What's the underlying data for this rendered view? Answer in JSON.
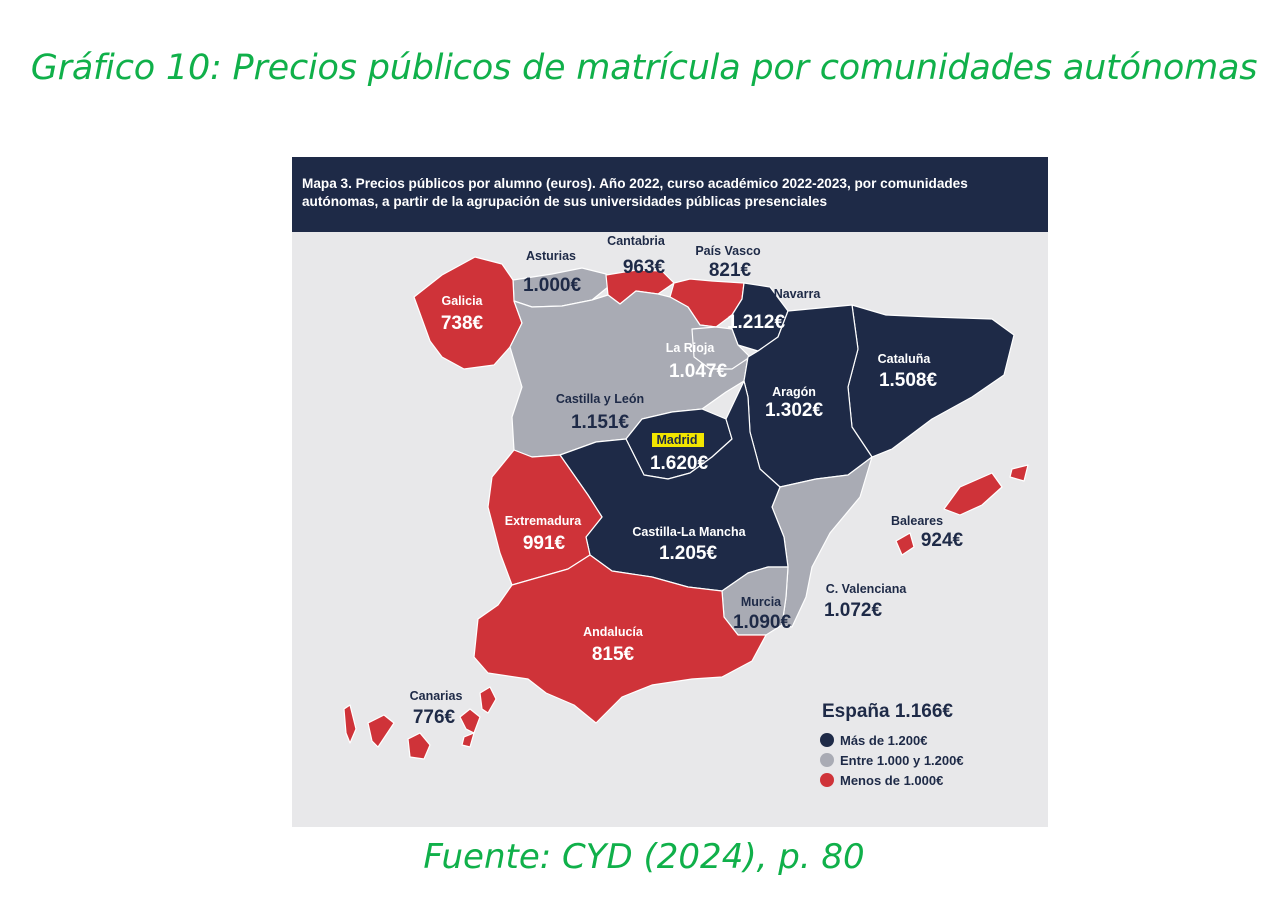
{
  "title": "Gráfico 10: Precios públicos de matrícula por comunidades autónomas",
  "map": {
    "header": "Mapa 3. Precios públicos por alumno (euros). Año 2022, curso académico 2022-2023, por comunidades autónomas, a partir de la agrupación de sus universidades públicas presenciales",
    "colors": {
      "high": "#1e2a47",
      "mid": "#a9abb4",
      "low": "#cf3339",
      "background": "#e8e8ea",
      "madrid_highlight": "#f2e600"
    },
    "regions": [
      {
        "name": "Galicia",
        "value": "738€",
        "category": "low"
      },
      {
        "name": "Asturias",
        "value": "1.000€",
        "category": "mid"
      },
      {
        "name": "Cantabria",
        "value": "963€",
        "category": "low"
      },
      {
        "name": "País Vasco",
        "value": "821€",
        "category": "low"
      },
      {
        "name": "Navarra",
        "value": "1.212€",
        "category": "high"
      },
      {
        "name": "La Rioja",
        "value": "1.047€",
        "category": "mid"
      },
      {
        "name": "Cataluña",
        "value": "1.508€",
        "category": "high"
      },
      {
        "name": "Aragón",
        "value": "1.302€",
        "category": "high"
      },
      {
        "name": "Castilla y León",
        "value": "1.151€",
        "category": "mid"
      },
      {
        "name": "Madrid",
        "value": "1.620€",
        "category": "high"
      },
      {
        "name": "Extremadura",
        "value": "991€",
        "category": "low"
      },
      {
        "name": "Castilla-La Mancha",
        "value": "1.205€",
        "category": "high"
      },
      {
        "name": "Baleares",
        "value": "924€",
        "category": "low"
      },
      {
        "name": "C. Valenciana",
        "value": "1.072€",
        "category": "mid"
      },
      {
        "name": "Murcia",
        "value": "1.090€",
        "category": "mid"
      },
      {
        "name": "Andalucía",
        "value": "815€",
        "category": "low"
      },
      {
        "name": "Canarias",
        "value": "776€",
        "category": "low"
      }
    ],
    "total": "España 1.166€",
    "legend": [
      {
        "label": "Más de 1.200€",
        "color": "#1e2a47"
      },
      {
        "label": "Entre 1.000 y 1.200€",
        "color": "#a9abb4"
      },
      {
        "label": "Menos de 1.000€",
        "color": "#cf3339"
      }
    ]
  },
  "source": "Fuente: CYD (2024), p. 80"
}
